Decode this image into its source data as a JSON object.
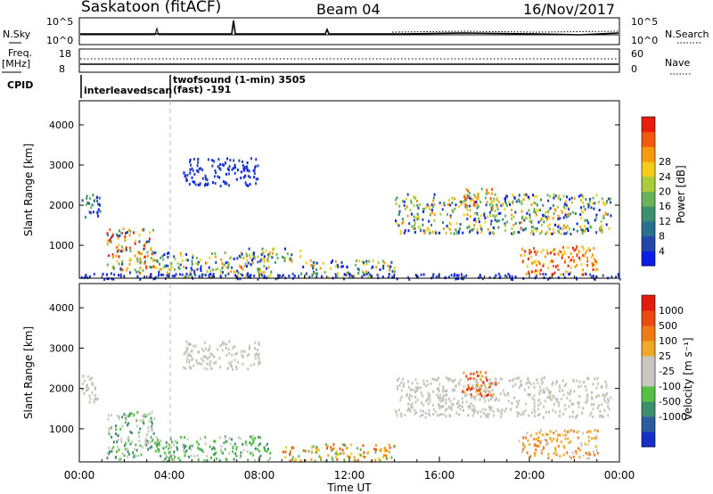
{
  "header": {
    "station": "Saskatoon (fitACF)",
    "beam": "Beam 04",
    "date": "16/Nov/2017"
  },
  "strips": {
    "nsky_label": "N.Sky",
    "nsky_ticks": [
      "10^5",
      "10^0"
    ],
    "nsearch_label": "N.Search",
    "nsearch_ticks": [
      "10^5",
      "10^0"
    ],
    "freq_label_1": "Freq.",
    "freq_label_2": "[MHz]",
    "freq_ticks": [
      "18",
      "8"
    ],
    "nave_label": "Nave",
    "nave_ticks": [
      "60",
      "0"
    ],
    "cpid_label": "CPID",
    "cpid_entries": [
      {
        "start_hour": 0.0,
        "label": "interleavedscan"
      },
      {
        "start_hour": 3.97,
        "label": "twofsound (1-min) 3505"
      },
      {
        "start_hour": 3.97,
        "label": "(fast) -191"
      }
    ]
  },
  "chart_data": [
    {
      "type": "heatmap",
      "panel": "power",
      "ylabel": "Slant Range [km]",
      "xlim": [
        0,
        24
      ],
      "ylim": [
        180,
        4600
      ],
      "yticks": [
        "1000",
        "2000",
        "3000",
        "4000"
      ],
      "colorbar": {
        "label": "Power [dB]",
        "ticks": [
          "4",
          "8",
          "12",
          "16",
          "20",
          "24",
          "28"
        ],
        "colors": [
          "#0a1ee6",
          "#2346a8",
          "#2a6f8f",
          "#3b8f6e",
          "#69b25a",
          "#a9cc3c",
          "#f4cc1a",
          "#f79a12",
          "#ef5a0d",
          "#e61e0a"
        ]
      },
      "scatter_regions": [
        {
          "t0": 0.1,
          "t1": 0.9,
          "r0": 1650,
          "r1": 2350,
          "level": "blue-green"
        },
        {
          "t0": 1.2,
          "t1": 3.3,
          "r0": 250,
          "r1": 1450,
          "level": "mixed-high"
        },
        {
          "t0": 3.3,
          "t1": 8.5,
          "r0": 220,
          "r1": 850,
          "level": "mixed"
        },
        {
          "t0": 4.6,
          "t1": 8.0,
          "r0": 2500,
          "r1": 3200,
          "level": "blue"
        },
        {
          "t0": 7.5,
          "t1": 9.8,
          "r0": 600,
          "r1": 950,
          "level": "mixed"
        },
        {
          "t0": 9.8,
          "t1": 14.0,
          "r0": 220,
          "r1": 650,
          "level": "mixed"
        },
        {
          "t0": 14.0,
          "t1": 23.6,
          "r0": 1300,
          "r1": 2300,
          "level": "mixed"
        },
        {
          "t0": 17.0,
          "t1": 18.5,
          "r0": 1950,
          "r1": 2450,
          "level": "orange"
        },
        {
          "t0": 19.5,
          "t1": 23.0,
          "r0": 300,
          "r1": 1000,
          "level": "red"
        },
        {
          "t0": 0.0,
          "t1": 24.0,
          "r0": 180,
          "r1": 320,
          "level": "blue"
        }
      ]
    },
    {
      "type": "heatmap",
      "panel": "velocity",
      "ylabel": "Slant Range [km]",
      "xlabel": "Time UT",
      "xlim": [
        0,
        24
      ],
      "ylim": [
        180,
        4600
      ],
      "yticks": [
        "1000",
        "2000",
        "3000",
        "4000"
      ],
      "xticks": [
        "00:00",
        "04:00",
        "08:00",
        "12:00",
        "16:00",
        "20:00",
        "00:00"
      ],
      "colorbar": {
        "label": "Velocity [m s⁻¹]",
        "ticks": [
          "1000",
          "500",
          "100",
          "25",
          "-25",
          "-100",
          "-500",
          "-1000"
        ],
        "colors": [
          "#1a2fc8",
          "#2d5c9e",
          "#3d8e6a",
          "#55c043",
          "#c8c8c0",
          "#c8c8c0",
          "#f0a828",
          "#ef7a18",
          "#ea4a10",
          "#e31a0d"
        ]
      },
      "scatter_regions": [
        {
          "t0": 0.1,
          "t1": 0.9,
          "r0": 1650,
          "r1": 2350,
          "level": "grey"
        },
        {
          "t0": 1.2,
          "t1": 3.3,
          "r0": 250,
          "r1": 1450,
          "level": "grey-green"
        },
        {
          "t0": 3.3,
          "t1": 8.5,
          "r0": 220,
          "r1": 850,
          "level": "green"
        },
        {
          "t0": 4.6,
          "t1": 8.0,
          "r0": 2500,
          "r1": 3200,
          "level": "grey"
        },
        {
          "t0": 9.0,
          "t1": 14.0,
          "r0": 220,
          "r1": 650,
          "level": "orange"
        },
        {
          "t0": 14.0,
          "t1": 23.6,
          "r0": 1300,
          "r1": 2300,
          "level": "grey"
        },
        {
          "t0": 17.0,
          "t1": 18.5,
          "r0": 1850,
          "r1": 2450,
          "level": "red-orange"
        },
        {
          "t0": 19.5,
          "t1": 23.0,
          "r0": 300,
          "r1": 1000,
          "level": "orange-grey"
        }
      ]
    }
  ]
}
